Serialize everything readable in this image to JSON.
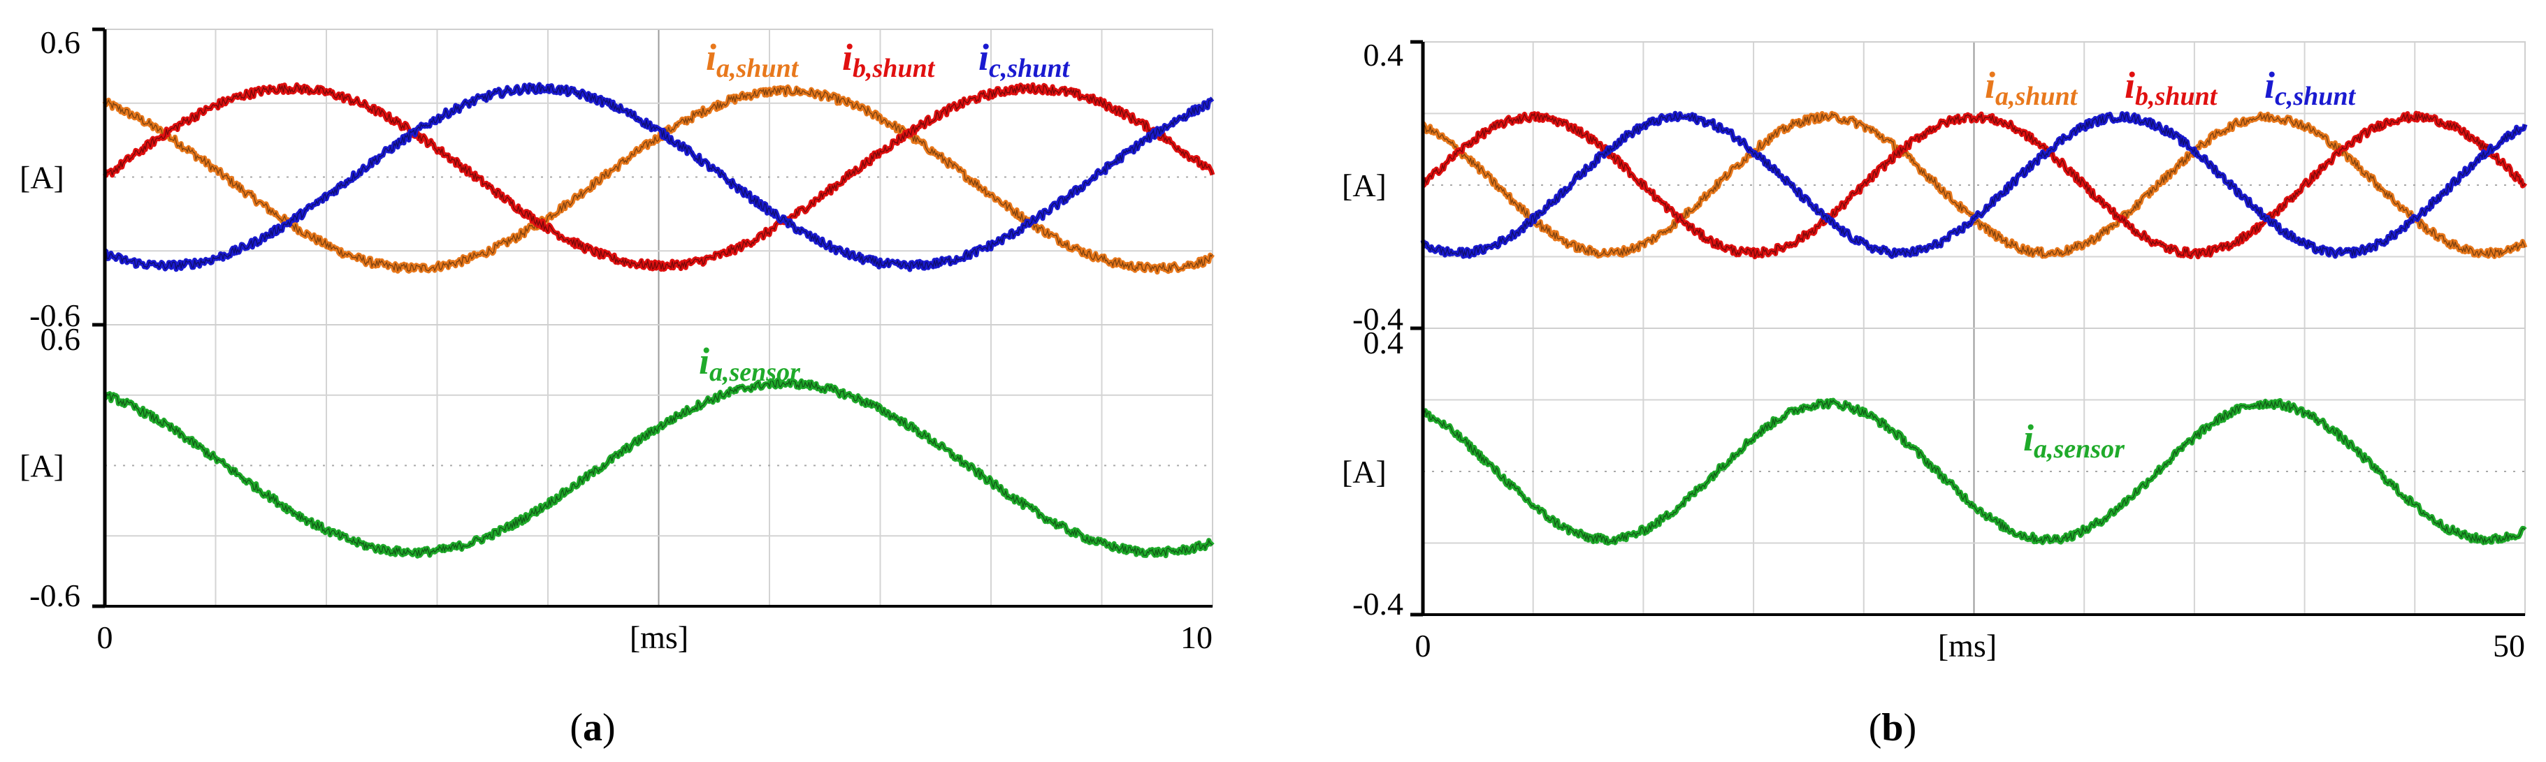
{
  "panels": [
    {
      "label": "(a)",
      "label_letter": "a",
      "chart_data": [
        {
          "type": "line",
          "xlabel": "[ms]",
          "ylabel": "[A]",
          "xlim": [
            0,
            10
          ],
          "ylim": [
            -0.6,
            0.6
          ],
          "x_ticks": [
            "0",
            "10"
          ],
          "y_ticks": [
            "0.6",
            "-0.6"
          ],
          "grid": true,
          "legend": "top-right",
          "series": [
            {
              "name": "ia,shunt",
              "var": "i",
              "sub": "a,shunt",
              "color": "#e8781c",
              "amplitude": 0.36,
              "period": 6.7,
              "phase_deg": 120,
              "offset": -0.01
            },
            {
              "name": "ib,shunt",
              "var": "i",
              "sub": "b,shunt",
              "color": "#e01010",
              "amplitude": 0.36,
              "period": 6.7,
              "phase_deg": 0,
              "offset": 0.0
            },
            {
              "name": "ic,shunt",
              "var": "i",
              "sub": "c,shunt",
              "color": "#1a1ad0",
              "amplitude": 0.36,
              "period": 6.7,
              "phase_deg": 240,
              "offset": 0.0
            }
          ]
        },
        {
          "type": "line",
          "xlabel": "[ms]",
          "ylabel": "[A]",
          "xlim": [
            0,
            10
          ],
          "ylim": [
            -0.6,
            0.6
          ],
          "x_ticks": [
            "0",
            "10"
          ],
          "y_ticks": [
            "0.6",
            "-0.6"
          ],
          "grid": true,
          "series": [
            {
              "name": "ia,sensor",
              "var": "i",
              "sub": "a,sensor",
              "color": "#1faa2a",
              "amplitude": 0.36,
              "period": 6.7,
              "phase_deg": 120,
              "offset": -0.01
            }
          ]
        }
      ]
    },
    {
      "label": "(b)",
      "label_letter": "b",
      "chart_data": [
        {
          "type": "line",
          "xlabel": "[ms]",
          "ylabel": "[A]",
          "xlim": [
            0,
            50
          ],
          "ylim": [
            -0.4,
            0.4
          ],
          "x_ticks": [
            "0",
            "50"
          ],
          "y_ticks": [
            "0.4",
            "-0.4"
          ],
          "grid": true,
          "legend": "top-right",
          "series": [
            {
              "name": "ia,shunt",
              "var": "i",
              "sub": "a,shunt",
              "color": "#e8781c",
              "amplitude": 0.19,
              "period": 20,
              "phase_deg": 120,
              "offset": 0.0
            },
            {
              "name": "ib,shunt",
              "var": "i",
              "sub": "b,shunt",
              "color": "#e01010",
              "amplitude": 0.19,
              "period": 20,
              "phase_deg": 0,
              "offset": 0.0
            },
            {
              "name": "ic,shunt",
              "var": "i",
              "sub": "c,shunt",
              "color": "#1a1ad0",
              "amplitude": 0.19,
              "period": 20,
              "phase_deg": 240,
              "offset": 0.0
            }
          ]
        },
        {
          "type": "line",
          "xlabel": "[ms]",
          "ylabel": "[A]",
          "xlim": [
            0,
            50
          ],
          "ylim": [
            -0.4,
            0.4
          ],
          "x_ticks": [
            "0",
            "50"
          ],
          "y_ticks": [
            "0.4",
            "-0.4"
          ],
          "grid": true,
          "series": [
            {
              "name": "ia,sensor",
              "var": "i",
              "sub": "a,sensor",
              "color": "#1faa2a",
              "amplitude": 0.19,
              "period": 20,
              "phase_deg": 120,
              "offset": 0.0
            }
          ]
        }
      ]
    }
  ]
}
